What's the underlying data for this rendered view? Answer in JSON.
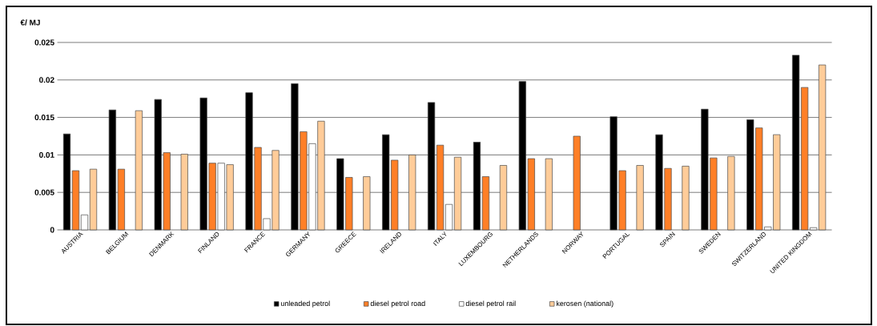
{
  "chart_data": {
    "type": "bar",
    "ylabel": "€/ MJ",
    "categories": [
      "AUSTRIA",
      "BELGIUM",
      "DENMARK",
      "FINLAND",
      "FRANCE",
      "GERMANY",
      "GREECE",
      "IRELAND",
      "ITALY",
      "LUXEMBOURG",
      "NETHERLANDS",
      "NORWAY",
      "PORTUGAL",
      "SPAIN",
      "SWEDEN",
      "SWITZERLAND",
      "UNITED KINGDOM"
    ],
    "series": [
      {
        "name": "unleaded petrol",
        "color": "#000000",
        "values": [
          0.0128,
          0.016,
          0.0174,
          0.0176,
          0.0183,
          0.0195,
          0.0095,
          0.0127,
          0.017,
          0.0117,
          0.0198,
          null,
          0.0151,
          0.0127,
          0.0161,
          0.0147,
          0.0233
        ]
      },
      {
        "name": "diesel petrol road",
        "color": "#ff7f27",
        "values": [
          0.0079,
          0.0081,
          0.0103,
          0.0089,
          0.011,
          0.0131,
          0.007,
          0.0093,
          0.0113,
          0.0071,
          0.0095,
          0.0125,
          0.0079,
          0.0082,
          0.0096,
          0.0136,
          0.019
        ]
      },
      {
        "name": "diesel petrol rail",
        "color": "#ffffff",
        "values": [
          0.002,
          null,
          null,
          0.0089,
          0.0015,
          0.0115,
          null,
          null,
          0.0034,
          null,
          null,
          null,
          null,
          null,
          null,
          0.0004,
          0.0003
        ]
      },
      {
        "name": "kerosen (national)",
        "color": "#ffcc99",
        "values": [
          0.0081,
          0.0159,
          0.0101,
          0.0087,
          0.0106,
          0.0145,
          0.0071,
          0.01,
          0.0097,
          0.0086,
          0.0095,
          null,
          0.0086,
          0.0085,
          0.0098,
          0.0127,
          0.022
        ]
      }
    ],
    "ylim": [
      0,
      0.025
    ],
    "yticks": [
      0,
      0.005,
      0.01,
      0.015,
      0.02,
      0.025
    ],
    "grid": "y",
    "legend": "bottom"
  }
}
